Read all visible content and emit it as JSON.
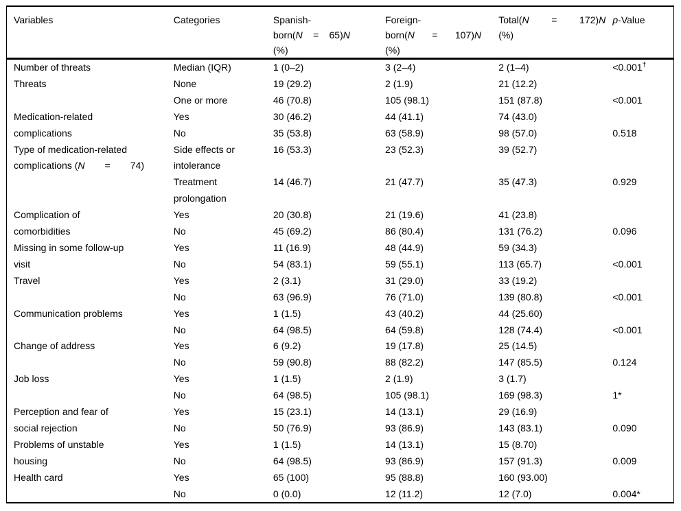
{
  "table": {
    "header": {
      "variables": "Variables",
      "categories": "Categories",
      "spanish": {
        "line1": "Spanish-",
        "born": "born(",
        "n1": "N",
        "eq": "=",
        "count": "65)",
        "n2": "N",
        "pct": "(%)"
      },
      "foreign": {
        "line1": "Foreign-",
        "born": "born(",
        "n1": "N",
        "eq": "=",
        "count": "107)",
        "n2": "N",
        "pct": "(%)"
      },
      "total": {
        "label": "Total(",
        "n1": "N",
        "eq": "=",
        "count": "172)",
        "n2": "N",
        "pct": "(%)"
      },
      "pvalue": {
        "p": "p",
        "suffix": "-Value"
      }
    },
    "rows": [
      {
        "v": "Number of threats",
        "c": "Median (IQR)",
        "s": "1 (0–2)",
        "f": "3 (2–4)",
        "t": "2 (1–4)",
        "p": "<0.001",
        "p_sup": "†"
      },
      {
        "v": "Threats",
        "c": "None",
        "s": "19 (29.2)",
        "f": "2 (1.9)",
        "t": "21 (12.2)",
        "p": ""
      },
      {
        "v": "",
        "c": "One or more",
        "s": "46 (70.8)",
        "f": "105 (98.1)",
        "t": "151 (87.8)",
        "p": "<0.001"
      },
      {
        "v": "Medication-related",
        "c": "Yes",
        "s": "30 (46.2)",
        "f": "44 (41.1)",
        "t": "74 (43.0)",
        "p": ""
      },
      {
        "v": "complications",
        "c": "No",
        "s": "35 (53.8)",
        "f": "63 (58.9)",
        "t": "98 (57.0)",
        "p": "0.518"
      },
      {
        "v": "Type of medication-related",
        "c": "Side effects or",
        "s": "16 (53.3)",
        "f": "23 (52.3)",
        "t": "39 (52.7)",
        "p": ""
      },
      {
        "v_parts": {
          "a": "complications (",
          "n": "N",
          "eq": "=",
          "b": "74)"
        },
        "c": "intolerance",
        "s": "",
        "f": "",
        "t": "",
        "p": ""
      },
      {
        "v": "",
        "c": "Treatment",
        "s": "14 (46.7)",
        "f": "21 (47.7)",
        "t": "35 (47.3)",
        "p": "0.929"
      },
      {
        "v": "",
        "c": "prolongation",
        "s": "",
        "f": "",
        "t": "",
        "p": ""
      },
      {
        "v": "Complication of",
        "c": "Yes",
        "s": "20 (30.8)",
        "f": "21 (19.6)",
        "t": "41 (23.8)",
        "p": ""
      },
      {
        "v": "comorbidities",
        "c": "No",
        "s": "45 (69.2)",
        "f": "86 (80.4)",
        "t": "131 (76.2)",
        "p": "0.096"
      },
      {
        "v": "Missing in some follow-up",
        "c": "Yes",
        "s": "11 (16.9)",
        "f": "48 (44.9)",
        "t": "59 (34.3)",
        "p": ""
      },
      {
        "v": "visit",
        "c": "No",
        "s": "54 (83.1)",
        "f": "59 (55.1)",
        "t": "113 (65.7)",
        "p": "<0.001"
      },
      {
        "v": "Travel",
        "c": "Yes",
        "s": "2 (3.1)",
        "f": "31 (29.0)",
        "t": "33 (19.2)",
        "p": ""
      },
      {
        "v": "",
        "c": "No",
        "s": "63 (96.9)",
        "f": "76 (71.0)",
        "t": "139 (80.8)",
        "p": "<0.001"
      },
      {
        "v": "Communication problems",
        "c": "Yes",
        "s": "1 (1.5)",
        "f": "43 (40.2)",
        "t": "44 (25.60)",
        "p": ""
      },
      {
        "v": "",
        "c": "No",
        "s": "64 (98.5)",
        "f": "64 (59.8)",
        "t": "128 (74.4)",
        "p": "<0.001"
      },
      {
        "v": "Change of address",
        "c": "Yes",
        "s": "6 (9.2)",
        "f": "19 (17.8)",
        "t": "25 (14.5)",
        "p": ""
      },
      {
        "v": "",
        "c": "No",
        "s": "59 (90.8)",
        "f": "88 (82.2)",
        "t": "147 (85.5)",
        "p": "0.124"
      },
      {
        "v": "Job loss",
        "c": "Yes",
        "s": "1 (1.5)",
        "f": "2 (1.9)",
        "t": "3 (1.7)",
        "p": ""
      },
      {
        "v": "",
        "c": "No",
        "s": "64 (98.5)",
        "f": "105 (98.1)",
        "t": "169 (98.3)",
        "p": "1*"
      },
      {
        "v": "Perception and fear of",
        "c": "Yes",
        "s": "15 (23.1)",
        "f": "14 (13.1)",
        "t": "29 (16.9)",
        "p": ""
      },
      {
        "v": "social rejection",
        "c": "No",
        "s": "50 (76.9)",
        "f": "93 (86.9)",
        "t": "143 (83.1)",
        "p": "0.090"
      },
      {
        "v": "Problems of unstable",
        "c": "Yes",
        "s": "1 (1.5)",
        "f": "14 (13.1)",
        "t": "15 (8.70)",
        "p": ""
      },
      {
        "v": "housing",
        "c": "No",
        "s": "64 (98.5)",
        "f": "93 (86.9)",
        "t": "157 (91.3)",
        "p": "0.009"
      },
      {
        "v": "Health card",
        "c": "Yes",
        "s": "65 (100)",
        "f": "95 (88.8)",
        "t": "160 (93.00)",
        "p": ""
      },
      {
        "v": "",
        "c": "No",
        "s": "0 (0.0)",
        "f": "12 (11.2)",
        "t": "12 (7.0)",
        "p": "0.004*"
      }
    ]
  }
}
